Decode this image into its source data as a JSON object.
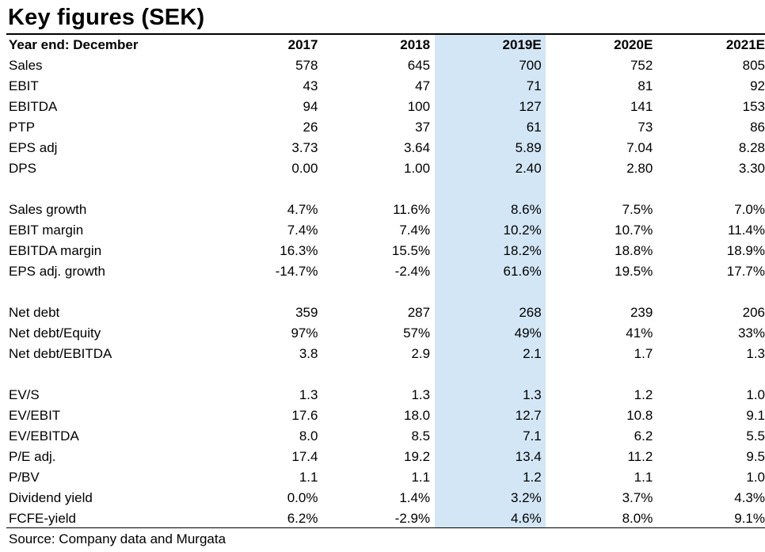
{
  "title": "Key figures (SEK)",
  "header": {
    "label": "Year end: December",
    "years": [
      "2017",
      "2018",
      "2019E",
      "2020E",
      "2021E"
    ]
  },
  "highlight_color": "#d3e6f6",
  "rows": [
    {
      "label": "Sales",
      "values": [
        "578",
        "645",
        "700",
        "752",
        "805"
      ]
    },
    {
      "label": "EBIT",
      "values": [
        "43",
        "47",
        "71",
        "81",
        "92"
      ]
    },
    {
      "label": "EBITDA",
      "values": [
        "94",
        "100",
        "127",
        "141",
        "153"
      ]
    },
    {
      "label": "PTP",
      "values": [
        "26",
        "37",
        "61",
        "73",
        "86"
      ]
    },
    {
      "label": "EPS adj",
      "values": [
        "3.73",
        "3.64",
        "5.89",
        "7.04",
        "8.28"
      ]
    },
    {
      "label": "DPS",
      "values": [
        "0.00",
        "1.00",
        "2.40",
        "2.80",
        "3.30"
      ]
    },
    {
      "label": "",
      "values": [
        "",
        "",
        "",
        "",
        ""
      ]
    },
    {
      "label": "Sales growth",
      "values": [
        "4.7%",
        "11.6%",
        "8.6%",
        "7.5%",
        "7.0%"
      ]
    },
    {
      "label": "EBIT margin",
      "values": [
        "7.4%",
        "7.4%",
        "10.2%",
        "10.7%",
        "11.4%"
      ]
    },
    {
      "label": "EBITDA margin",
      "values": [
        "16.3%",
        "15.5%",
        "18.2%",
        "18.8%",
        "18.9%"
      ]
    },
    {
      "label": "EPS adj. growth",
      "values": [
        "-14.7%",
        "-2.4%",
        "61.6%",
        "19.5%",
        "17.7%"
      ]
    },
    {
      "label": "",
      "values": [
        "",
        "",
        "",
        "",
        ""
      ]
    },
    {
      "label": "Net debt",
      "values": [
        "359",
        "287",
        "268",
        "239",
        "206"
      ]
    },
    {
      "label": "Net debt/Equity",
      "values": [
        "97%",
        "57%",
        "49%",
        "41%",
        "33%"
      ]
    },
    {
      "label": "Net debt/EBITDA",
      "values": [
        "3.8",
        "2.9",
        "2.1",
        "1.7",
        "1.3"
      ]
    },
    {
      "label": "",
      "values": [
        "",
        "",
        "",
        "",
        ""
      ]
    },
    {
      "label": "EV/S",
      "values": [
        "1.3",
        "1.3",
        "1.3",
        "1.2",
        "1.0"
      ]
    },
    {
      "label": "EV/EBIT",
      "values": [
        "17.6",
        "18.0",
        "12.7",
        "10.8",
        "9.1"
      ]
    },
    {
      "label": "EV/EBITDA",
      "values": [
        "8.0",
        "8.5",
        "7.1",
        "6.2",
        "5.5"
      ]
    },
    {
      "label": "P/E adj.",
      "values": [
        "17.4",
        "19.2",
        "13.4",
        "11.2",
        "9.5"
      ]
    },
    {
      "label": "P/BV",
      "values": [
        "1.1",
        "1.1",
        "1.2",
        "1.1",
        "1.0"
      ]
    },
    {
      "label": "Dividend yield",
      "values": [
        "0.0%",
        "1.4%",
        "3.2%",
        "3.7%",
        "4.3%"
      ]
    },
    {
      "label": "FCFE-yield",
      "values": [
        "6.2%",
        "-2.9%",
        "4.6%",
        "8.0%",
        "9.1%"
      ]
    }
  ],
  "source": "Source: Company data and Murgata"
}
